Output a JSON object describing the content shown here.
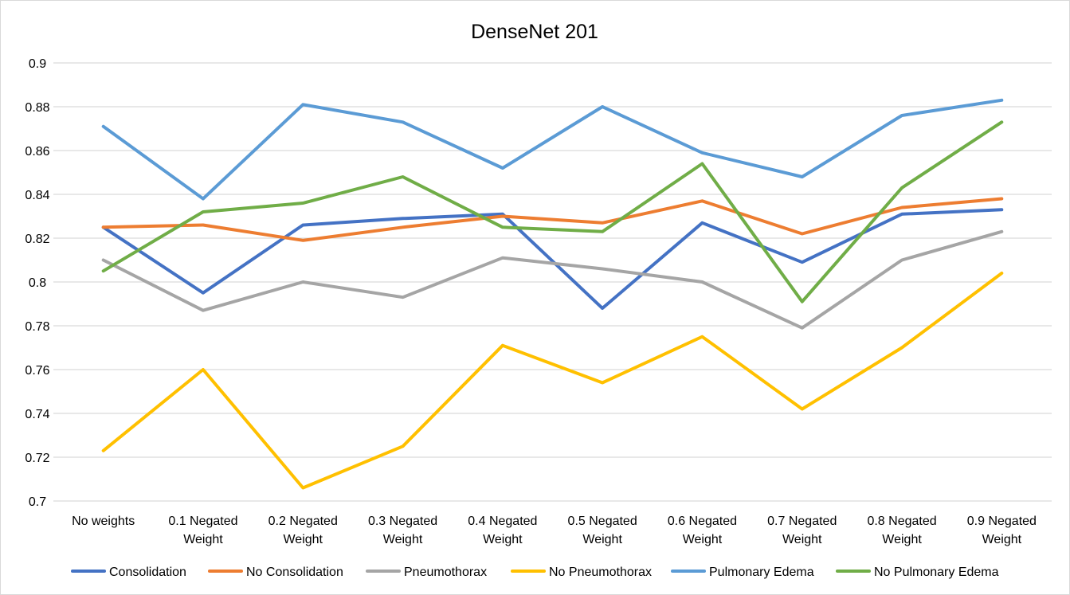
{
  "chart_data": {
    "type": "line",
    "title": "DenseNet 201",
    "xlabel": "",
    "ylabel": "",
    "categories": [
      [
        "No weights"
      ],
      [
        "0.1 Negated",
        "Weight"
      ],
      [
        "0.2 Negated",
        "Weight"
      ],
      [
        "0.3 Negated",
        "Weight"
      ],
      [
        "0.4 Negated",
        "Weight"
      ],
      [
        "0.5 Negated",
        "Weight"
      ],
      [
        "0.6 Negated",
        "Weight"
      ],
      [
        "0.7 Negated",
        "Weight"
      ],
      [
        "0.8 Negated",
        "Weight"
      ],
      [
        "0.9 Negated",
        "Weight"
      ]
    ],
    "ylim": [
      0.7,
      0.9
    ],
    "yticks": [
      "0.7",
      "0.72",
      "0.74",
      "0.76",
      "0.78",
      "0.8",
      "0.82",
      "0.84",
      "0.86",
      "0.88",
      "0.9"
    ],
    "grid": true,
    "legend_position": "bottom",
    "series": [
      {
        "name": "Consolidation",
        "color": "#4472C4",
        "values": [
          0.825,
          0.795,
          0.826,
          0.829,
          0.831,
          0.788,
          0.827,
          0.809,
          0.831,
          0.833
        ]
      },
      {
        "name": "No Consolidation",
        "color": "#ED7D31",
        "values": [
          0.825,
          0.826,
          0.819,
          0.825,
          0.83,
          0.827,
          0.837,
          0.822,
          0.834,
          0.838
        ]
      },
      {
        "name": "Pneumothorax",
        "color": "#A5A5A5",
        "values": [
          0.81,
          0.787,
          0.8,
          0.793,
          0.811,
          0.806,
          0.8,
          0.779,
          0.81,
          0.823
        ]
      },
      {
        "name": "No Pneumothorax",
        "color": "#FFC000",
        "values": [
          0.723,
          0.76,
          0.706,
          0.725,
          0.771,
          0.754,
          0.775,
          0.742,
          0.77,
          0.804
        ]
      },
      {
        "name": "Pulmonary Edema",
        "color": "#5B9BD5",
        "values": [
          0.871,
          0.838,
          0.881,
          0.873,
          0.852,
          0.88,
          0.859,
          0.848,
          0.876,
          0.883
        ]
      },
      {
        "name": "No Pulmonary Edema",
        "color": "#70AD47",
        "values": [
          0.805,
          0.832,
          0.836,
          0.848,
          0.825,
          0.823,
          0.854,
          0.791,
          0.843,
          0.873
        ]
      }
    ]
  }
}
